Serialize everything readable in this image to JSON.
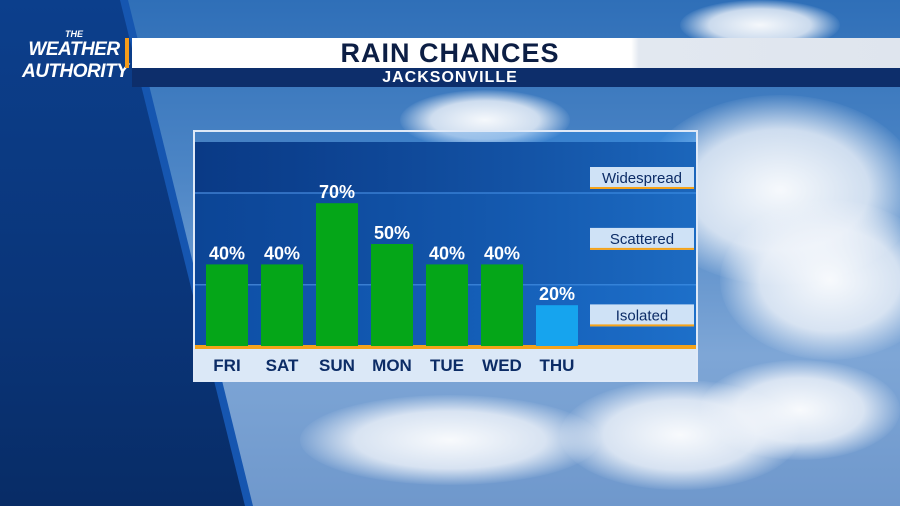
{
  "branding": {
    "logo_line0": "THE",
    "logo_line1": "WEATHER",
    "logo_line2": "AUTHORITY"
  },
  "header": {
    "title": "RAIN CHANCES",
    "subtitle": "JACKSONVILLE"
  },
  "colors": {
    "bar_normal": "#05a618",
    "bar_low": "#16a4ee",
    "plot_bg": "#0b3f8f",
    "baseline": "#f5a31a",
    "label_band": "#cfe2f6"
  },
  "chart_data": {
    "type": "bar",
    "title": "RAIN CHANCES",
    "subtitle": "JACKSONVILLE",
    "categories": [
      "FRI",
      "SAT",
      "SUN",
      "MON",
      "TUE",
      "WED",
      "THU"
    ],
    "values": [
      40,
      40,
      70,
      50,
      40,
      40,
      20
    ],
    "value_labels": [
      "40%",
      "40%",
      "70%",
      "50%",
      "40%",
      "40%",
      "20%"
    ],
    "ylim": [
      0,
      100
    ],
    "bands": [
      {
        "name": "Widespread",
        "from": 75,
        "to": 100
      },
      {
        "name": "Scattered",
        "from": 30,
        "to": 75
      },
      {
        "name": "Isolated",
        "from": 0,
        "to": 30
      }
    ],
    "grid": false
  }
}
